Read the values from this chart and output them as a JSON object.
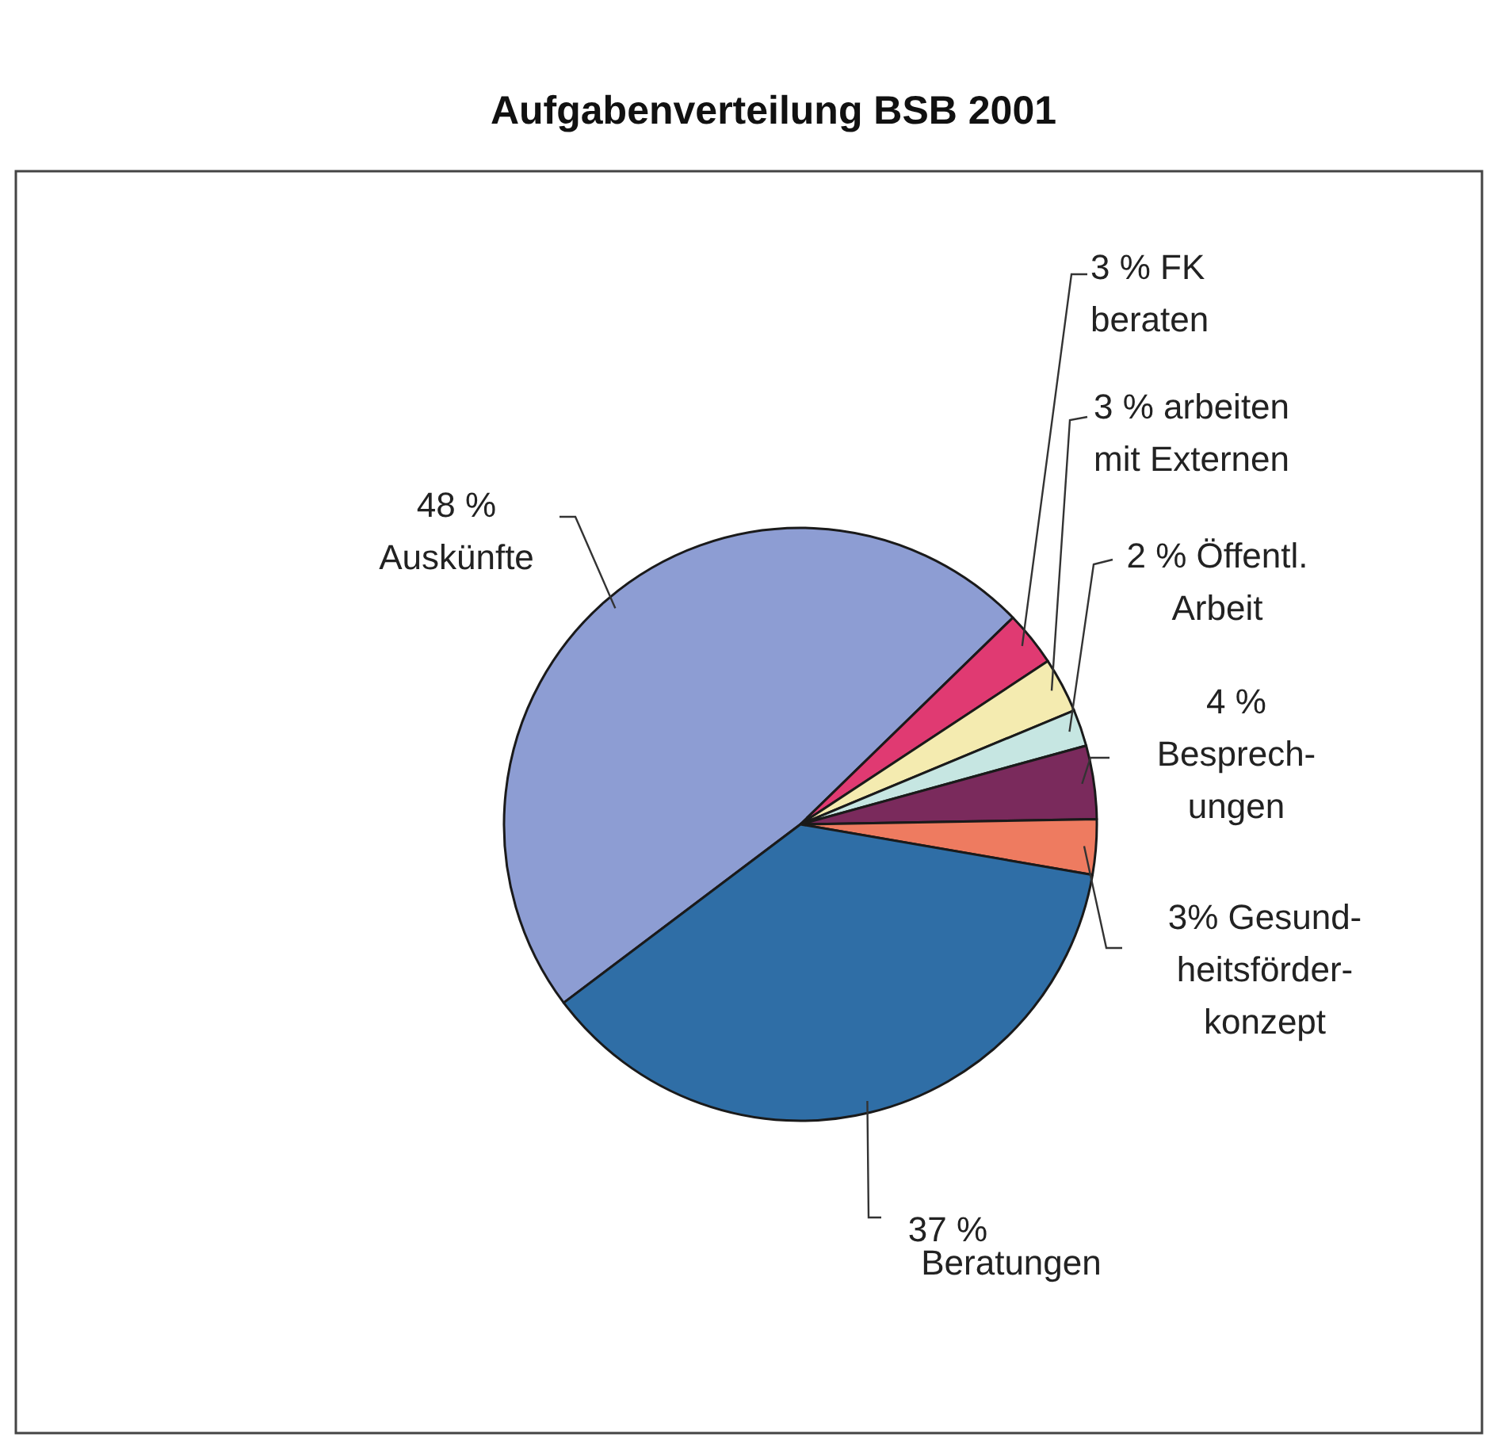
{
  "chart_data": {
    "type": "pie",
    "title": "Aufgabenverteilung BSB 2001",
    "categories": [
      "Auskünfte",
      "FK\nberaten",
      "arbeiten\nmit Externen",
      "Öffentl.\nArbeit",
      "Besprech-\nungen",
      "Gesund-\nheitsförder-\nkonzept",
      "Beratungen"
    ],
    "values": [
      48,
      3,
      3,
      2,
      4,
      3,
      37
    ],
    "value_labels": [
      "48 %",
      "3 %",
      "3 %",
      "2 %",
      "4 %",
      "3%",
      "37 %"
    ],
    "colors": [
      "#8d9dd3",
      "#e03a72",
      "#f4ebb0",
      "#c6e6e2",
      "#7a2a5c",
      "#ee7b60",
      "#2f6ea6"
    ]
  }
}
